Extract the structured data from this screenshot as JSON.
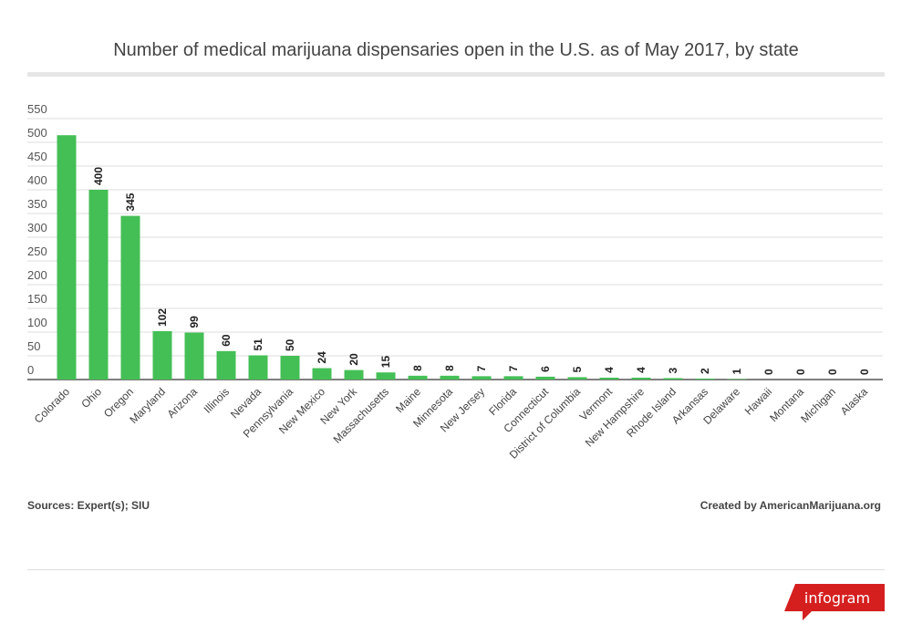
{
  "chart_data": {
    "type": "bar",
    "title": "Number of medical marijuana dispensaries open in the U.S. as of May 2017, by state",
    "categories": [
      "Colorado",
      "Ohio",
      "Oregon",
      "Maryland",
      "Arizona",
      "Illinois",
      "Nevada",
      "Pennsylvania",
      "New Mexico",
      "New York",
      "Massachusetts",
      "Maine",
      "Minnesota",
      "New Jersey",
      "Florida",
      "Connecticut",
      "District of Columbia",
      "Vermont",
      "New Hampshire",
      "Rhode Island",
      "Arkansas",
      "Delaware",
      "Hawaii",
      "Montana",
      "Michigan",
      "Alaska"
    ],
    "values": [
      515,
      400,
      345,
      102,
      99,
      60,
      51,
      50,
      24,
      20,
      15,
      8,
      8,
      7,
      7,
      6,
      5,
      4,
      4,
      3,
      2,
      1,
      0,
      0,
      0,
      0
    ],
    "label_shown": [
      false,
      true,
      true,
      true,
      true,
      true,
      true,
      true,
      true,
      true,
      true,
      true,
      true,
      true,
      true,
      true,
      true,
      true,
      true,
      true,
      true,
      true,
      true,
      true,
      true,
      true
    ],
    "ylim": [
      0,
      550
    ],
    "yticks": [
      0,
      50,
      100,
      150,
      200,
      250,
      300,
      350,
      400,
      450,
      500,
      550
    ],
    "grid": true,
    "bar_color": "#44bf56"
  },
  "source": "Sources: Expert(s); SIU",
  "credit": "Created by AmericanMarijuana.org",
  "logo": "infogram",
  "logo_color": "#d51f1f"
}
